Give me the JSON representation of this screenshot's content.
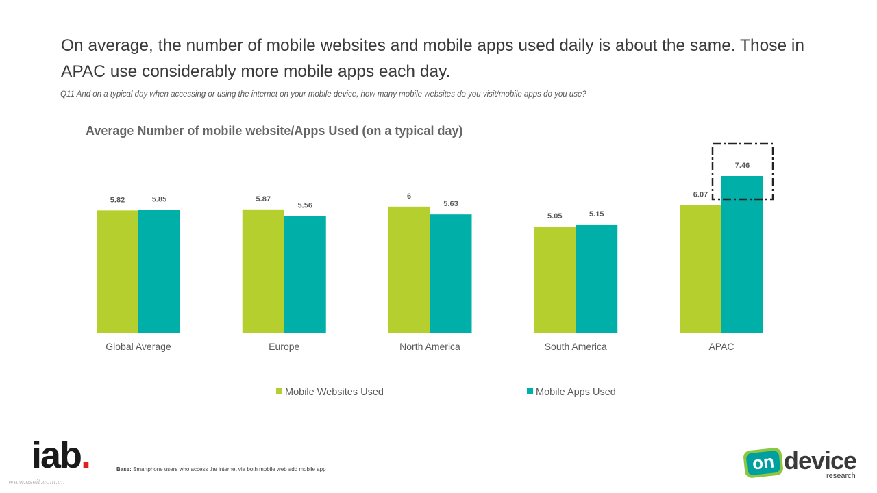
{
  "headline": "On average, the number of mobile websites and mobile apps used daily is about the same. Those in APAC use considerably more mobile apps each day.",
  "question": "Q11 And on a typical day when accessing or using the internet on your mobile device, how many mobile websites do you visit/mobile apps do you use?",
  "chart_data": {
    "type": "bar",
    "title": "Average Number of mobile website/Apps Used (on a typical day)",
    "categories": [
      "Global Average",
      "Europe",
      "North America",
      "South America",
      "APAC"
    ],
    "series": [
      {
        "name": "Mobile Websites Used",
        "values": [
          5.82,
          5.87,
          6,
          5.05,
          6.07
        ],
        "labels": [
          "5.82",
          "5.87",
          "6",
          "5.05",
          "6.07"
        ],
        "color": "#b5cf2e"
      },
      {
        "name": "Mobile Apps Used",
        "values": [
          5.85,
          5.56,
          5.63,
          5.15,
          7.46
        ],
        "labels": [
          "5.85",
          "5.56",
          "5.63",
          "5.15",
          "7.46"
        ],
        "color": "#00b0a8"
      }
    ],
    "ylim": [
      0,
      7.46
    ],
    "grid": false,
    "legend": "bottom",
    "highlight": {
      "category": "APAC",
      "series": "Mobile Apps Used"
    }
  },
  "footer": {
    "base_label": "Base:",
    "base_text": "Smartphone users who access the internet via both mobile web add mobile app",
    "iab_logo": "iab",
    "iab_dot": ".",
    "watermark": "www.useit.com.cn",
    "od_badge": "on",
    "od_word": "device",
    "od_research": "research"
  }
}
